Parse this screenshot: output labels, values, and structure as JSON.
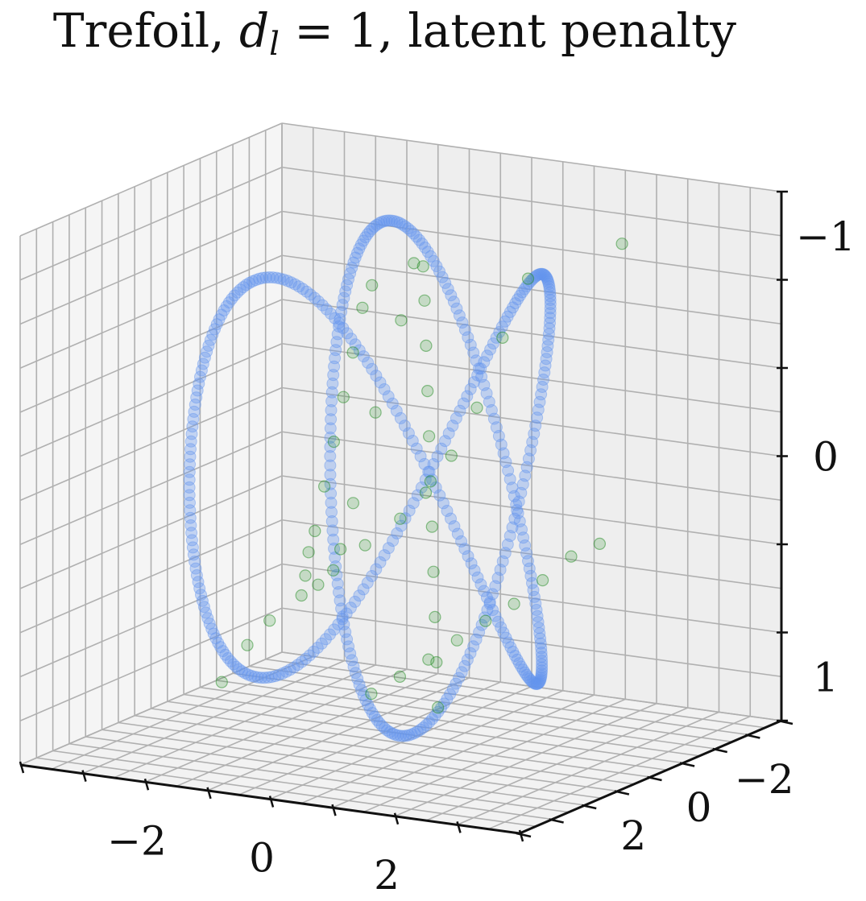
{
  "title": {
    "prefix": "Trefoil, ",
    "var": "d",
    "sub": "l",
    "suffix": " = 1, latent penalty"
  },
  "colors": {
    "knot": "#6495ED",
    "latent": "#228B22",
    "pane_left": "#f5f5f5",
    "pane_right": "#eeeeee",
    "pane_floor": "#f2f2f2",
    "grid": "#b0b0b0"
  },
  "chart_data": {
    "type": "scatter",
    "projection": "3d",
    "title": "Trefoil, d_l = 1, latent penalty",
    "xlabel": "",
    "ylabel": "",
    "zlabel": "",
    "xlim": [
      -4,
      4
    ],
    "ylim": [
      -4,
      4
    ],
    "zlim": [
      -1.2,
      1.2
    ],
    "z_axis_inverted": true,
    "grid": true,
    "x_ticks": [
      {
        "value": -2,
        "label": "−2"
      },
      {
        "value": 0,
        "label": "0"
      },
      {
        "value": 2,
        "label": "2"
      }
    ],
    "y_ticks": [
      {
        "value": -2,
        "label": "−2"
      },
      {
        "value": 0,
        "label": "0"
      },
      {
        "value": 2,
        "label": "2"
      }
    ],
    "z_ticks": [
      {
        "value": -1,
        "label": "−1"
      },
      {
        "value": 0,
        "label": "0"
      },
      {
        "value": 1,
        "label": "1"
      }
    ],
    "series": [
      {
        "kind": "trefoil_knot",
        "x": "sin(t) + 2 sin(2t)",
        "y": "cos(t) - 2 cos(2t)",
        "z": "-sin(3t)",
        "t_range": [
          0,
          6.2832
        ],
        "n_points": 500,
        "color": "#6495ED",
        "alpha": 0.35
      },
      {
        "kind": "latent_reconstruction",
        "color": "#228B22",
        "alpha": 0.2,
        "points": [
          [
            0.2,
            -0.3,
            -0.95
          ],
          [
            0.25,
            -0.25,
            -0.8
          ],
          [
            0.3,
            -0.2,
            -0.6
          ],
          [
            0.35,
            -0.15,
            -0.4
          ],
          [
            0.4,
            -0.1,
            -0.2
          ],
          [
            0.45,
            -0.05,
            0.0
          ],
          [
            0.5,
            0.0,
            0.2
          ],
          [
            0.55,
            0.05,
            0.4
          ],
          [
            0.6,
            0.1,
            0.6
          ],
          [
            0.65,
            0.15,
            0.8
          ],
          [
            0.7,
            0.2,
            1.0
          ],
          [
            -0.9,
            1.2,
            0.4
          ],
          [
            -0.8,
            1.1,
            0.2
          ],
          [
            -0.7,
            1.0,
            0.0
          ],
          [
            -0.6,
            0.9,
            -0.2
          ],
          [
            -0.5,
            0.8,
            -0.4
          ],
          [
            -0.4,
            0.7,
            -0.6
          ],
          [
            -0.3,
            0.6,
            -0.8
          ],
          [
            -0.2,
            0.5,
            -0.9
          ],
          [
            0.0,
            -0.4,
            -0.95
          ],
          [
            -0.1,
            -0.2,
            -0.7
          ],
          [
            -0.3,
            0.2,
            -0.3
          ],
          [
            -0.5,
            0.5,
            0.1
          ],
          [
            -0.6,
            0.7,
            0.3
          ],
          [
            -0.8,
            1.0,
            0.45
          ],
          [
            -0.9,
            1.1,
            0.3
          ],
          [
            1.2,
            -1.6,
            -0.85
          ],
          [
            1.0,
            -1.2,
            -0.6
          ],
          [
            0.8,
            -0.8,
            -0.3
          ],
          [
            0.6,
            -0.4,
            -0.1
          ],
          [
            0.4,
            0.0,
            0.05
          ],
          [
            0.2,
            0.4,
            0.15
          ],
          [
            -0.1,
            0.9,
            0.25
          ],
          [
            -0.4,
            1.3,
            0.35
          ],
          [
            -0.7,
            1.7,
            0.45
          ],
          [
            -1.0,
            2.1,
            0.55
          ],
          [
            -1.2,
            2.4,
            0.65
          ],
          [
            -1.4,
            2.8,
            0.8
          ],
          [
            2.6,
            -1.8,
            -1.05
          ],
          [
            2.4,
            -1.5,
            0.3
          ],
          [
            2.1,
            -1.2,
            0.35
          ],
          [
            1.8,
            -0.9,
            0.45
          ],
          [
            1.5,
            -0.6,
            0.55
          ],
          [
            1.2,
            -0.3,
            0.62
          ],
          [
            0.9,
            0.0,
            0.7
          ],
          [
            0.6,
            0.3,
            0.78
          ],
          [
            0.3,
            0.6,
            0.85
          ],
          [
            0.0,
            0.9,
            0.92
          ]
        ]
      }
    ]
  }
}
